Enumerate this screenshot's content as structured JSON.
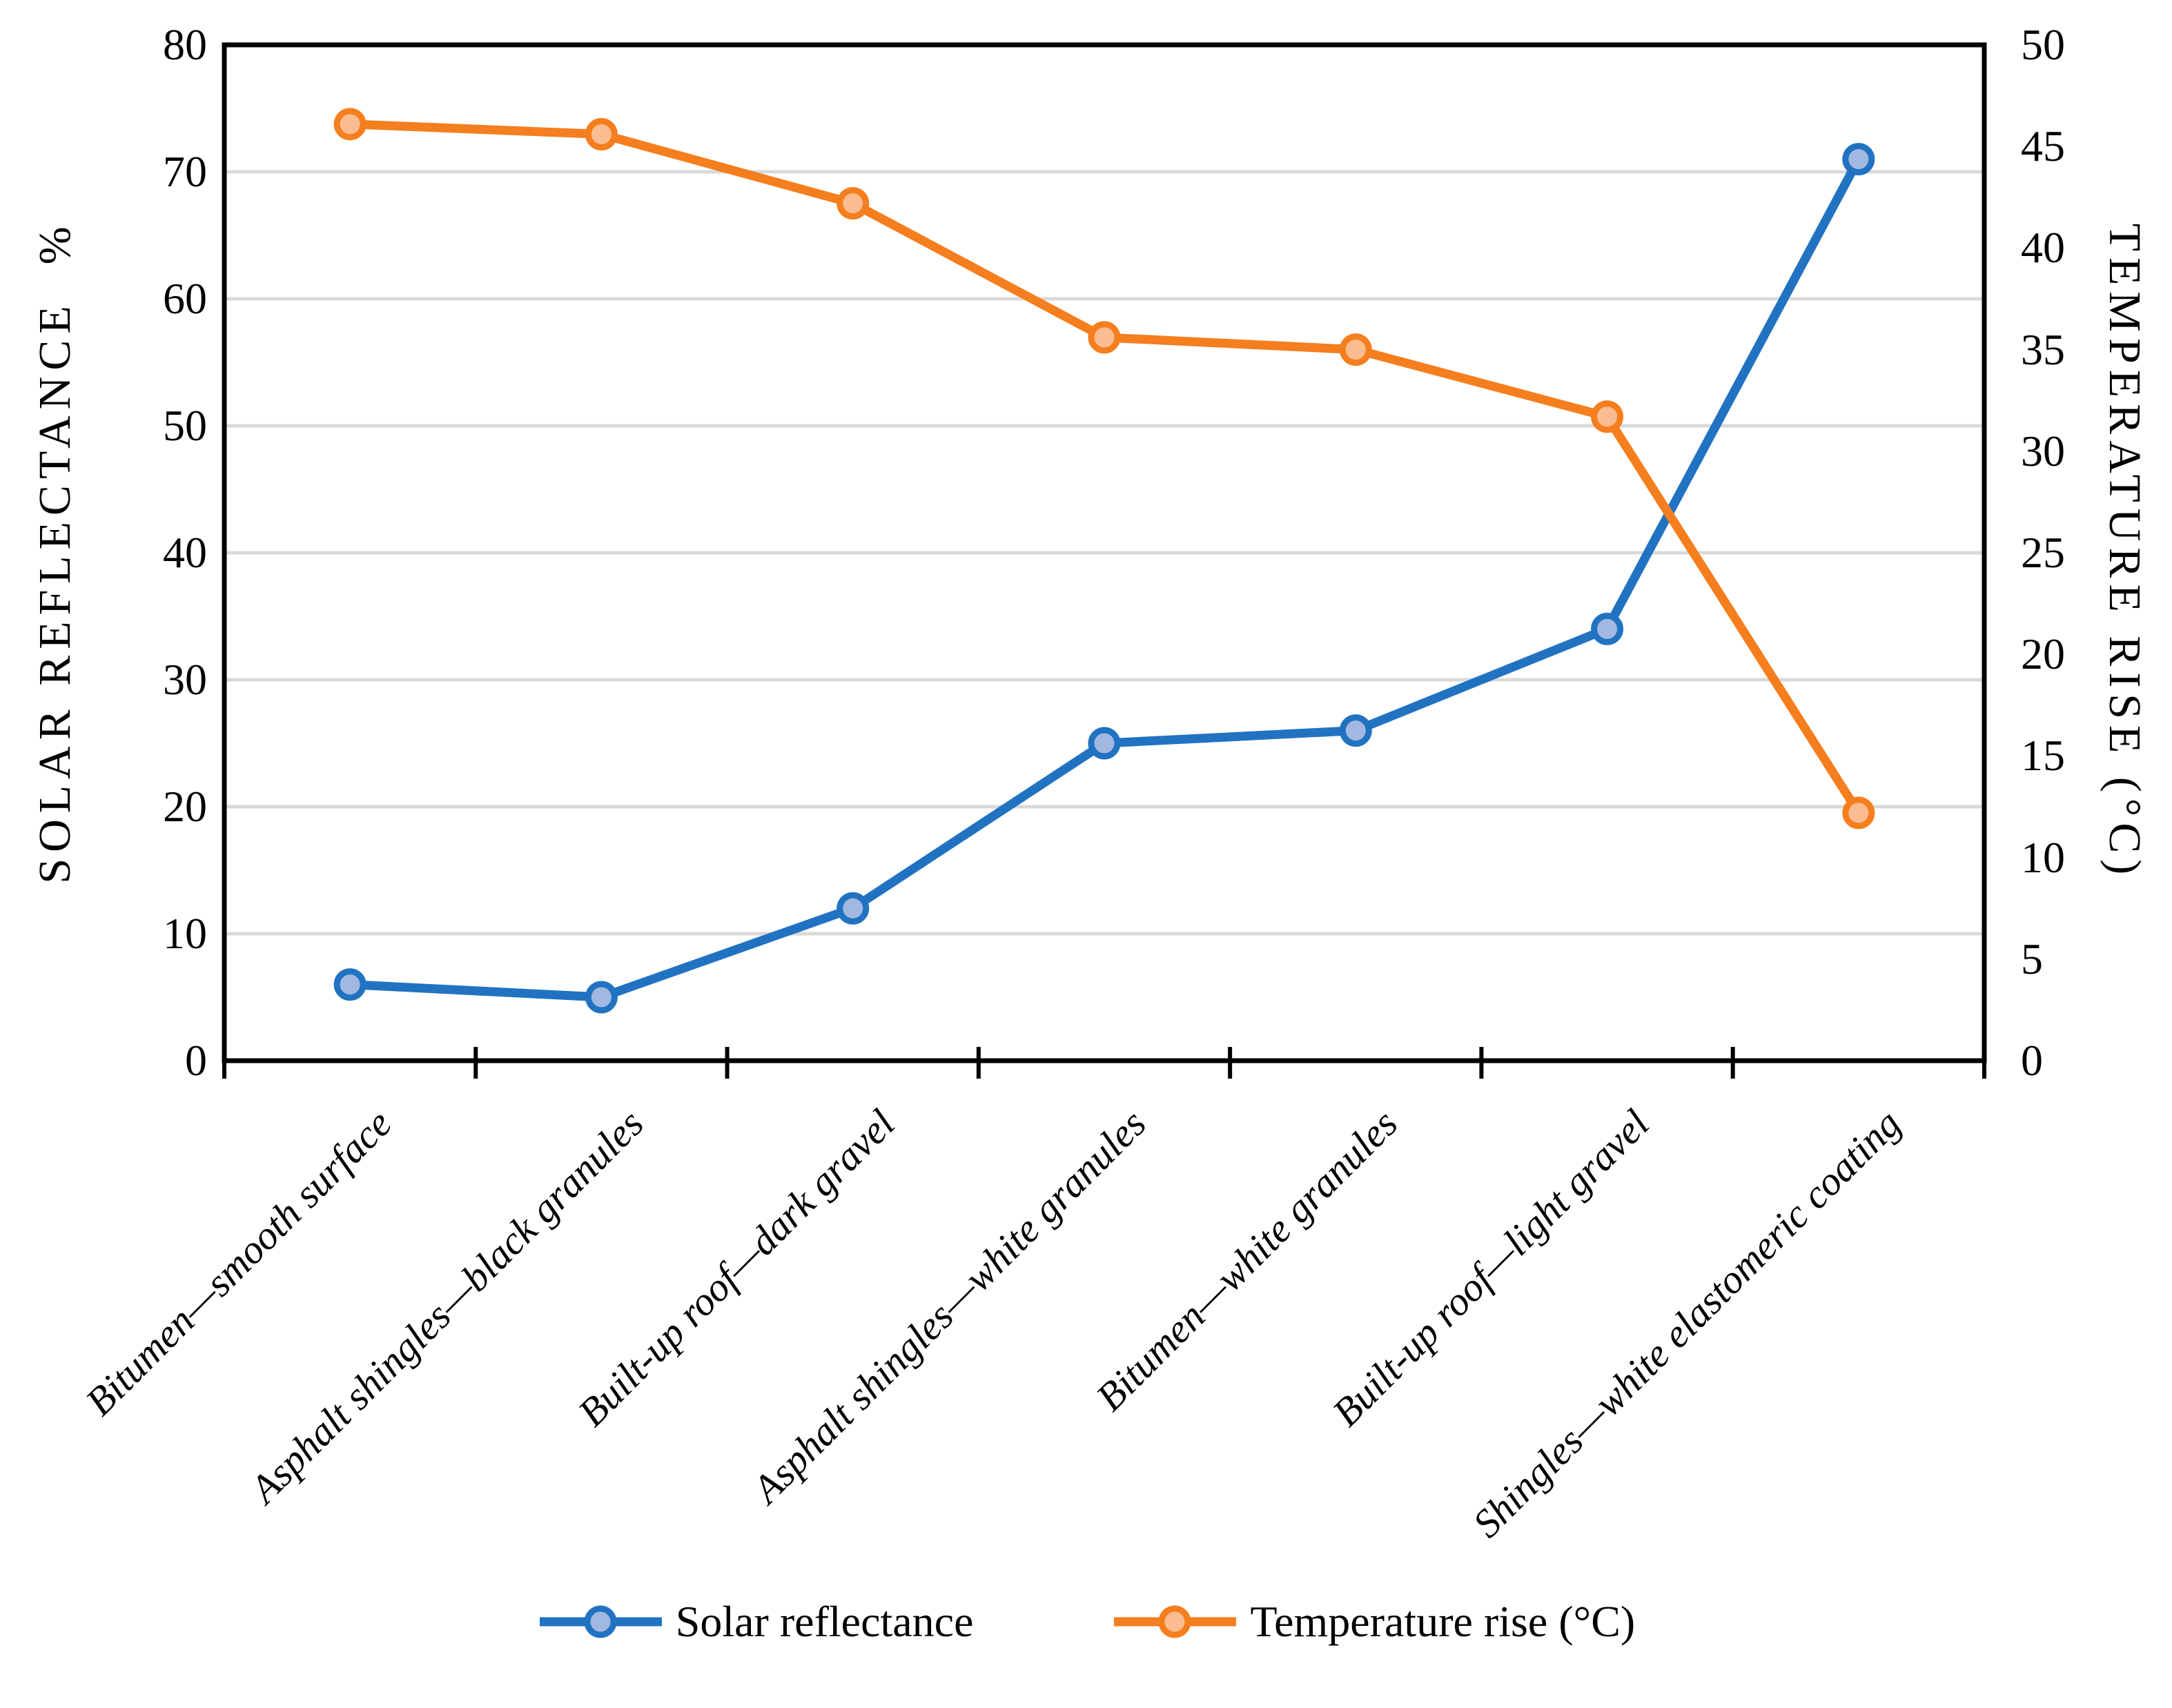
{
  "chart_data": {
    "type": "line",
    "title": "",
    "categories": [
      "Bitumen—smooth surface",
      "Asphalt shingles—black granules",
      "Built-up roof—dark gravel",
      "Asphalt shingles—white granules",
      "Bitumen—white granules",
      "Built-up roof—light gravel",
      "Shingles—white elastomeric coating"
    ],
    "series": [
      {
        "name": "Solar reflectance",
        "axis": "left",
        "values": [
          6,
          5,
          12,
          25,
          26,
          34,
          71
        ],
        "color": "#2173C2",
        "marker_fill": "#A3B8E0"
      },
      {
        "name": "Temperature rise (°C)",
        "axis": "right",
        "values": [
          46.1,
          45.6,
          42.2,
          35.6,
          35,
          31.7,
          12.2
        ],
        "color": "#F57E1E",
        "marker_fill": "#FBBC91"
      }
    ],
    "left_axis": {
      "label": "SOLAR REFLECTANCE  %",
      "min": 0,
      "max": 80,
      "step": 10
    },
    "right_axis": {
      "label": "TEMPERATURE RISE (°C)",
      "min": 0,
      "max": 50,
      "step": 5
    },
    "grid": true,
    "grid_color": "#D9D9D9",
    "frame_color": "#000000",
    "legend_position": "bottom"
  }
}
